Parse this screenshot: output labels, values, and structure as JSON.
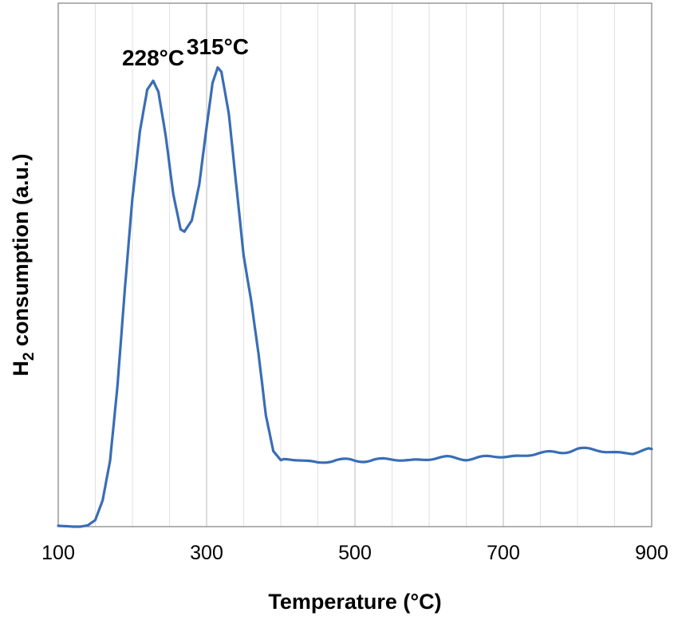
{
  "chart_data": {
    "type": "line",
    "title": "",
    "xlabel": "Temperature (°C)",
    "ylabel_main": "H",
    "ylabel_sub": "2",
    "ylabel_rest": " consumption (a.u.)",
    "xlim": [
      100,
      900
    ],
    "ylim": [
      0,
      100
    ],
    "x_ticks": [
      100,
      300,
      500,
      700,
      900
    ],
    "x_minor_step": 50,
    "grid": true,
    "legend": "none",
    "line_color": "#3a6db5",
    "annotations": [
      {
        "text": "228°C",
        "x": 228,
        "y": 104
      },
      {
        "text": "315°C",
        "x": 315,
        "y": 106.5
      }
    ],
    "series": [
      {
        "x": [
          100,
          110,
          120,
          130,
          140,
          150,
          160,
          170,
          180,
          190,
          200,
          210,
          220,
          228,
          235,
          245,
          255,
          265,
          270,
          280,
          290,
          300,
          308,
          315,
          320,
          330,
          340,
          350,
          360,
          370,
          380,
          390,
          400,
          425,
          450,
          475,
          500,
          525,
          550,
          575,
          600,
          625,
          650,
          675,
          700,
          725,
          750,
          775,
          800,
          825,
          850,
          875,
          900
        ],
        "y": [
          0.2,
          0.1,
          0.0,
          0.0,
          0.3,
          1.5,
          6.0,
          15.0,
          32.0,
          54.0,
          74.0,
          89.0,
          98.5,
          100.5,
          98.0,
          88.0,
          75.0,
          67.0,
          66.5,
          69.0,
          77.0,
          90.0,
          100.0,
          103.5,
          102.5,
          93.0,
          77.0,
          61.0,
          51.0,
          39.0,
          25.0,
          17.0,
          15.0,
          15.0,
          14.5,
          15.0,
          14.8,
          15.2,
          15.0,
          15.0,
          15.3,
          15.5,
          15.4,
          15.6,
          15.8,
          16.0,
          16.5,
          16.8,
          17.5,
          17.2,
          16.8,
          16.5,
          17.5
        ]
      }
    ]
  }
}
